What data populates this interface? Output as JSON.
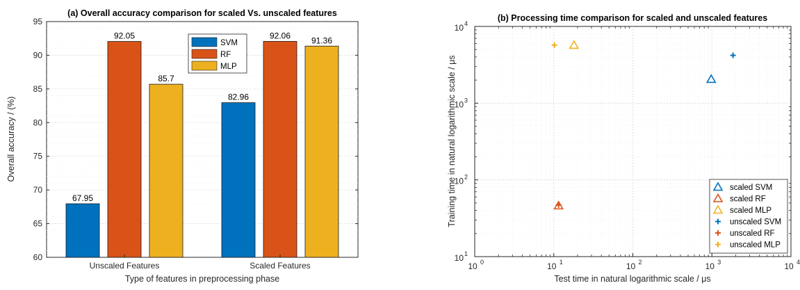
{
  "chart_data": [
    {
      "type": "bar",
      "title": "(a) Overall accuracy comparison for scaled Vs. unscaled features",
      "xlabel": "Type of features in preprocessing phase",
      "ylabel": "Overall accuracy / (%)",
      "categories": [
        "Unscaled Features",
        "Scaled Features"
      ],
      "series": [
        {
          "name": "SVM",
          "color": "#0072BD",
          "values": [
            67.95,
            82.96
          ],
          "labels": [
            "67.95",
            "82.96"
          ]
        },
        {
          "name": "RF",
          "color": "#D95319",
          "values": [
            92.05,
            92.06
          ],
          "labels": [
            "92.05",
            "92.06"
          ]
        },
        {
          "name": "MLP",
          "color": "#EDB120",
          "values": [
            85.7,
            91.36
          ],
          "labels": [
            "85.7",
            "91.36"
          ]
        }
      ],
      "ylim": [
        60,
        95
      ],
      "yticks": [
        60,
        65,
        70,
        75,
        80,
        85,
        90,
        95
      ],
      "ytick_labels": [
        "60",
        "65",
        "70",
        "75",
        "80",
        "85",
        "90",
        "95"
      ],
      "grid": true,
      "legend_position": "top-center"
    },
    {
      "type": "scatter",
      "title": "(b) Processing time comparison for scaled and unscaled features",
      "xlabel": "Test time in natural logarithmic scale / μs",
      "ylabel": "Training time in natural logarithmic scale / μs",
      "xscale": "log",
      "yscale": "log",
      "xlim": [
        1,
        10000
      ],
      "ylim": [
        10,
        10000
      ],
      "x_ticks": [
        {
          "value": 1,
          "base": "10",
          "exp": "0"
        },
        {
          "value": 10,
          "base": "10",
          "exp": "1"
        },
        {
          "value": 100,
          "base": "10",
          "exp": "2"
        },
        {
          "value": 1000,
          "base": "10",
          "exp": "3"
        },
        {
          "value": 10000,
          "base": "10",
          "exp": "4"
        }
      ],
      "y_ticks": [
        {
          "value": 10,
          "base": "10",
          "exp": "1"
        },
        {
          "value": 100,
          "base": "10",
          "exp": "2"
        },
        {
          "value": 1000,
          "base": "10",
          "exp": "3"
        },
        {
          "value": 10000,
          "base": "10",
          "exp": "4"
        }
      ],
      "series": [
        {
          "name": "scaled SVM",
          "marker": "triangle",
          "color": "#0072BD",
          "points": [
            {
              "x": 980,
              "y": 2050
            }
          ]
        },
        {
          "name": "scaled RF",
          "marker": "triangle",
          "color": "#D95319",
          "points": [
            {
              "x": 11.5,
              "y": 46
            }
          ]
        },
        {
          "name": "scaled MLP",
          "marker": "triangle",
          "color": "#EDB120",
          "points": [
            {
              "x": 18,
              "y": 5700
            }
          ]
        },
        {
          "name": "unscaled SVM",
          "marker": "plus",
          "color": "#0072BD",
          "points": [
            {
              "x": 1850,
              "y": 4200
            }
          ]
        },
        {
          "name": "unscaled RF",
          "marker": "plus",
          "color": "#D95319",
          "points": [
            {
              "x": 11.5,
              "y": 47
            }
          ]
        },
        {
          "name": "unscaled MLP",
          "marker": "plus",
          "color": "#EDB120",
          "points": [
            {
              "x": 10.2,
              "y": 5700
            }
          ]
        }
      ],
      "grid": true,
      "minor_grid": true,
      "legend_position": "bottom-right"
    }
  ]
}
